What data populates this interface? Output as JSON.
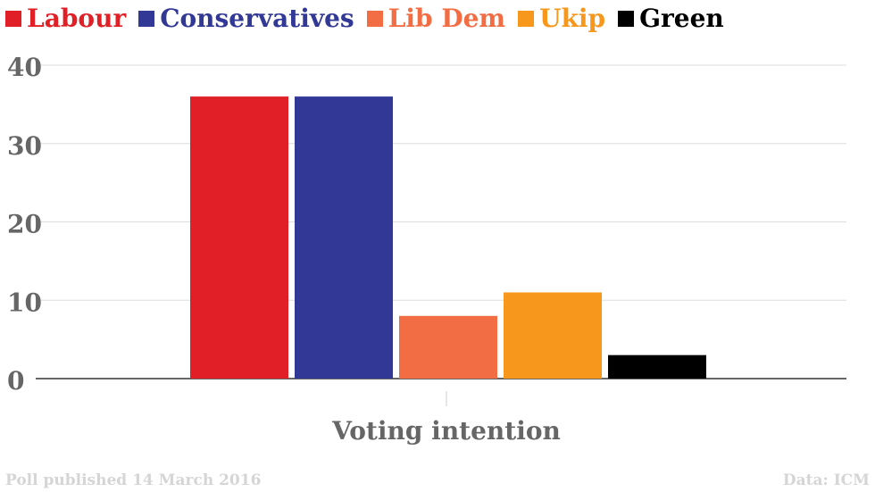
{
  "chart_data": {
    "type": "bar",
    "title": "",
    "xlabel": "Voting intention",
    "ylabel": "",
    "ylim": [
      0,
      40
    ],
    "yticks": [
      0,
      10,
      20,
      30,
      40
    ],
    "grid": true,
    "legend_position": "top",
    "series": [
      {
        "name": "Labour",
        "value": 36,
        "color": "#e01f26"
      },
      {
        "name": "Conservatives",
        "value": 36,
        "color": "#323896"
      },
      {
        "name": "Lib Dem",
        "value": 8,
        "color": "#f26d43"
      },
      {
        "name": "Ukip",
        "value": 11,
        "color": "#f7981d"
      },
      {
        "name": "Green",
        "value": 3,
        "color": "#000000"
      }
    ]
  },
  "footer": {
    "left": "Poll published 14 March 2016",
    "right": "Data: ICM"
  }
}
